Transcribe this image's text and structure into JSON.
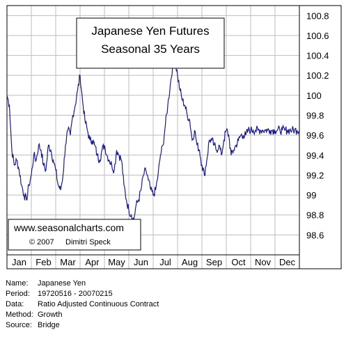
{
  "chart_data": {
    "type": "line",
    "title": "Japanese Yen Futures",
    "subtitle": "Seasonal 35 Years",
    "categories": [
      "Jan",
      "Feb",
      "Mar",
      "Apr",
      "May",
      "Jun",
      "Jul",
      "Aug",
      "Sep",
      "Oct",
      "Nov",
      "Dec"
    ],
    "ylim": [
      98.4,
      100.9
    ],
    "y_ticks": [
      "100.8",
      "100.6",
      "100.4",
      "100.2",
      "100",
      "99.8",
      "99.6",
      "99.4",
      "99.2",
      "99",
      "98.8",
      "98.6"
    ],
    "grid": true,
    "axis_position": "right",
    "x": [
      0.0,
      0.1,
      0.2,
      0.3,
      0.4,
      0.5,
      0.6,
      0.7,
      0.8,
      0.9,
      1.0,
      1.1,
      1.2,
      1.3,
      1.4,
      1.5,
      1.6,
      1.7,
      1.8,
      1.9,
      2.0,
      2.1,
      2.2,
      2.3,
      2.4,
      2.5,
      2.6,
      2.7,
      2.8,
      2.9,
      3.0,
      3.1,
      3.2,
      3.3,
      3.4,
      3.5,
      3.6,
      3.7,
      3.8,
      3.9,
      4.0,
      4.1,
      4.2,
      4.3,
      4.4,
      4.5,
      4.6,
      4.7,
      4.8,
      4.9,
      5.0,
      5.1,
      5.2,
      5.3,
      5.4,
      5.5,
      5.6,
      5.7,
      5.8,
      5.9,
      6.0,
      6.1,
      6.2,
      6.3,
      6.4,
      6.5,
      6.6,
      6.7,
      6.8,
      6.9,
      7.0,
      7.1,
      7.2,
      7.3,
      7.4,
      7.5,
      7.6,
      7.7,
      7.8,
      7.9,
      8.0,
      8.1,
      8.2,
      8.3,
      8.4,
      8.5,
      8.6,
      8.7,
      8.8,
      8.9,
      9.0,
      9.1,
      9.2,
      9.3,
      9.4,
      9.5,
      9.6,
      9.7,
      9.8,
      9.9,
      10.0,
      10.1,
      10.2,
      10.3,
      10.4,
      10.5,
      10.6,
      10.7,
      10.8,
      10.9,
      11.0,
      11.1,
      11.2,
      11.3,
      11.4,
      11.5,
      11.6,
      11.7,
      11.8,
      11.9,
      12.0
    ],
    "series": [
      {
        "color": "#1a1a8c",
        "values": [
          100.0,
          99.9,
          99.45,
          99.3,
          99.35,
          99.25,
          99.1,
          99.0,
          98.95,
          99.1,
          99.2,
          99.4,
          99.35,
          99.5,
          99.45,
          99.3,
          99.25,
          99.5,
          99.45,
          99.35,
          99.25,
          99.1,
          99.05,
          99.2,
          99.5,
          99.65,
          99.6,
          99.8,
          99.9,
          100.05,
          100.2,
          99.95,
          99.75,
          99.65,
          99.55,
          99.55,
          99.5,
          99.4,
          99.35,
          99.45,
          99.5,
          99.4,
          99.35,
          99.3,
          99.25,
          99.45,
          99.4,
          99.35,
          99.1,
          98.95,
          98.85,
          98.8,
          98.75,
          98.9,
          98.95,
          99.05,
          99.2,
          99.25,
          99.15,
          99.05,
          99.0,
          99.05,
          99.2,
          99.4,
          99.5,
          99.7,
          99.9,
          100.1,
          100.3,
          100.35,
          100.2,
          100.05,
          99.95,
          99.9,
          99.8,
          99.75,
          99.55,
          99.65,
          99.5,
          99.45,
          99.3,
          99.2,
          99.35,
          99.55,
          99.55,
          99.5,
          99.45,
          99.5,
          99.4,
          99.55,
          99.65,
          99.6,
          99.4,
          99.45,
          99.5,
          99.55,
          99.6,
          99.6,
          99.6,
          99.65,
          99.65,
          99.65,
          99.65,
          99.65,
          99.65,
          99.65,
          99.65,
          99.65,
          99.65,
          99.65,
          99.65,
          99.65,
          99.65,
          99.65,
          99.65,
          99.65,
          99.65,
          99.65,
          99.65,
          99.65,
          99.65
        ]
      }
    ]
  },
  "title_box": {
    "line1": "Japanese Yen Futures",
    "line2": "Seasonal 35 Years"
  },
  "watermark": {
    "url": "www.seasonalcharts.com",
    "copyright": "© 2007",
    "author": "Dimitri Speck"
  },
  "info": [
    {
      "key": "Name:",
      "value": "Japanese Yen"
    },
    {
      "key": "Period:",
      "value": "19720516 - 20070215"
    },
    {
      "key": "Data:",
      "value": "Ratio Adjusted Continuous Contract"
    },
    {
      "key": "Method:",
      "value": "Growth"
    },
    {
      "key": "Source:",
      "value": "Bridge"
    }
  ],
  "colors": {
    "line": "#1a1a8c",
    "grid": "#bdbdbd",
    "frame": "#000000"
  }
}
